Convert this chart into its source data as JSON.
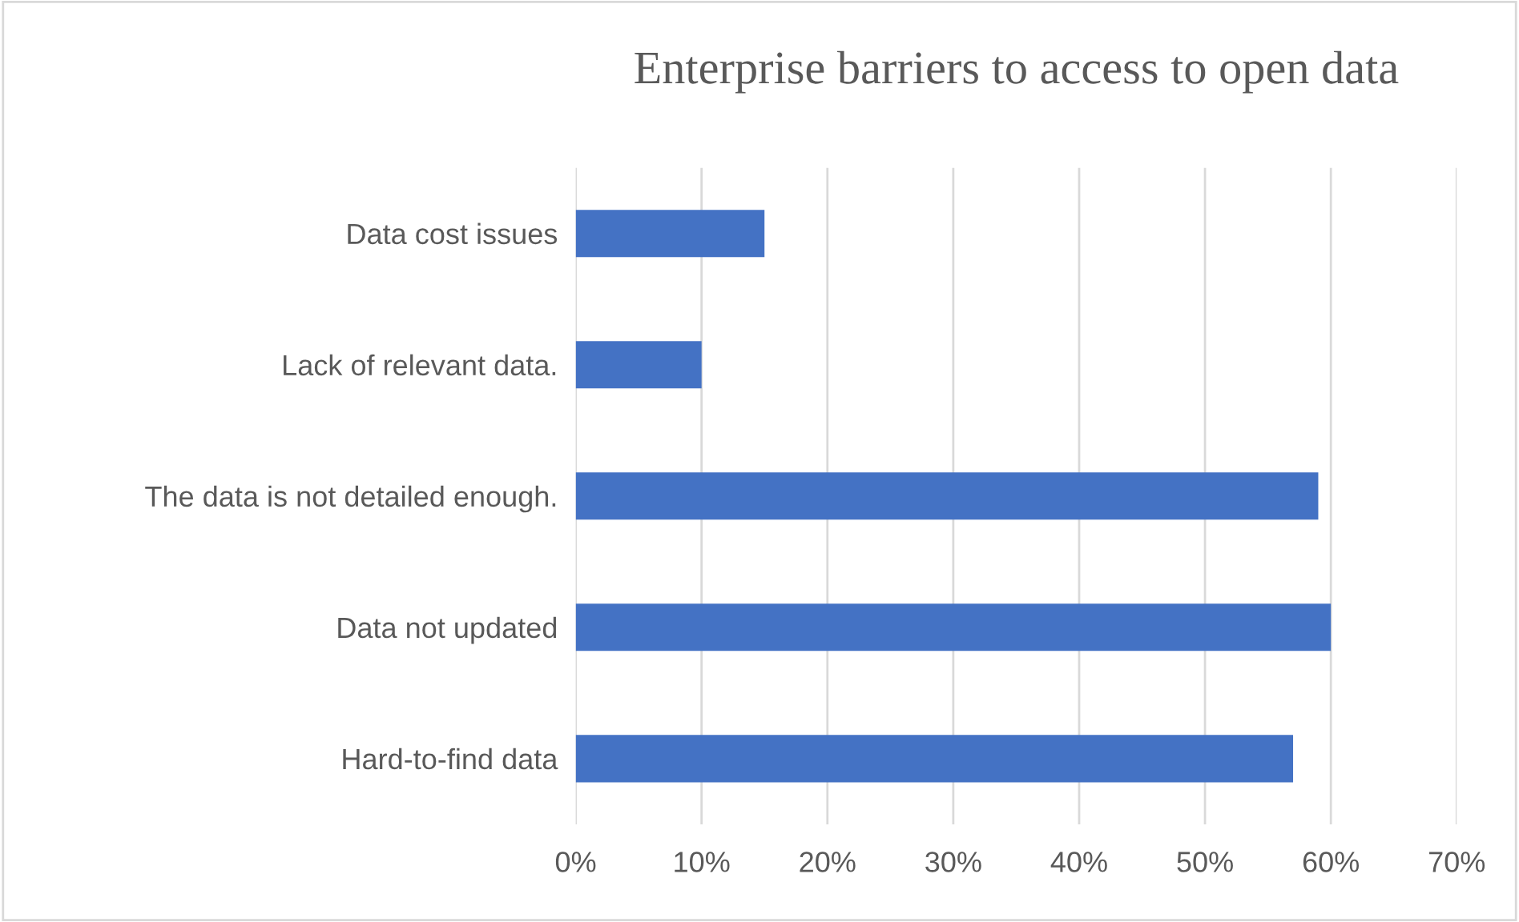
{
  "chart_data": {
    "type": "bar",
    "orientation": "horizontal",
    "title": "Enterprise barriers to access to open data",
    "categories": [
      "Data cost issues",
      "Lack of relevant data.",
      "The data is not detailed enough.",
      "Data not updated",
      "Hard-to-find data"
    ],
    "values": [
      15,
      10,
      59,
      60,
      57
    ],
    "color": "#4472c4",
    "xlim": [
      0,
      70
    ],
    "xticks": [
      {
        "value": 0,
        "label": "0%"
      },
      {
        "value": 10,
        "label": "10%"
      },
      {
        "value": 20,
        "label": "20%"
      },
      {
        "value": 30,
        "label": "30%"
      },
      {
        "value": 40,
        "label": "40%"
      },
      {
        "value": 50,
        "label": "50%"
      },
      {
        "value": 60,
        "label": "60%"
      },
      {
        "value": 70,
        "label": "70%"
      }
    ],
    "grid": "x",
    "legend": false
  }
}
